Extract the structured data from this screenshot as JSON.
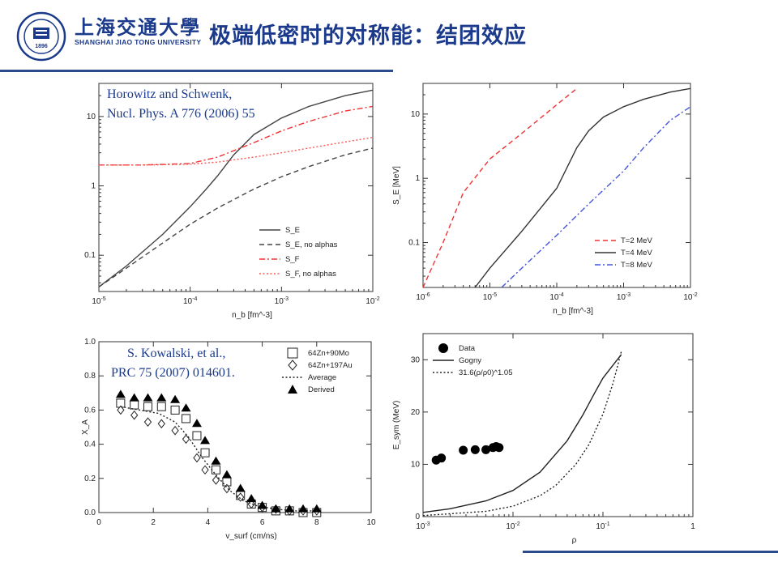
{
  "header": {
    "title": "极端低密时的对称能：结团效应",
    "logo_cn": "上海交通大學",
    "logo_en": "SHANGHAI JIAO TONG UNIVERSITY",
    "logo_year": "1896"
  },
  "citations": {
    "top_left_line1": "Horowitz and Schwenk,",
    "top_left_line2": "Nucl. Phys. A 776 (2006) 55",
    "bottom_left_line1": "S. Kowalski, et al.,",
    "bottom_left_line2": "PRC 75 (2007) 014601."
  },
  "chart_data": [
    {
      "type": "line",
      "panel": "top-left",
      "xlabel": "n_b [fm^-3]",
      "ylabel": "S_E, S_F [MeV]",
      "xscale": "log",
      "yscale": "log",
      "xlim": [
        1e-05,
        0.01
      ],
      "ylim": [
        0.03,
        30
      ],
      "xticks": [
        "10^-5",
        "10^-4",
        "10^-3",
        "10^-2"
      ],
      "yticks": [
        "0.1",
        "1",
        "10"
      ],
      "legend_position": "bottom-right",
      "series": [
        {
          "name": "S_E",
          "style": "solid",
          "color": "#444444",
          "x": [
            1e-05,
            2e-05,
            5e-05,
            0.0001,
            0.00015,
            0.0002,
            0.0003,
            0.0005,
            0.001,
            0.002,
            0.005,
            0.01
          ],
          "y": [
            0.035,
            0.07,
            0.2,
            0.5,
            0.9,
            1.4,
            2.8,
            5.5,
            9.5,
            14,
            20,
            24
          ]
        },
        {
          "name": "S_E, no alphas",
          "style": "dashed",
          "color": "#444444",
          "x": [
            1e-05,
            2e-05,
            5e-05,
            0.0001,
            0.0002,
            0.0005,
            0.001,
            0.002,
            0.005,
            0.01
          ],
          "y": [
            0.035,
            0.065,
            0.15,
            0.28,
            0.48,
            0.9,
            1.35,
            1.9,
            2.8,
            3.5
          ]
        },
        {
          "name": "S_F",
          "style": "dashdot",
          "color": "#ee3333",
          "x": [
            1e-05,
            3e-05,
            0.0001,
            0.0002,
            0.0005,
            0.001,
            0.002,
            0.005,
            0.01
          ],
          "y": [
            2.0,
            2.0,
            2.1,
            2.6,
            4.2,
            6.2,
            8.5,
            12,
            14
          ]
        },
        {
          "name": "S_F, no alphas",
          "style": "dotted",
          "color": "#ff5555",
          "x": [
            1e-05,
            3e-05,
            0.0001,
            0.0002,
            0.0005,
            0.001,
            0.002,
            0.005,
            0.01
          ],
          "y": [
            2.0,
            2.0,
            2.05,
            2.2,
            2.6,
            3.0,
            3.5,
            4.3,
            5.0
          ]
        }
      ]
    },
    {
      "type": "line",
      "panel": "top-right",
      "xlabel": "n_b [fm^-3]",
      "ylabel": "S_E [MeV]",
      "xscale": "log",
      "yscale": "log",
      "xlim": [
        1e-06,
        0.01
      ],
      "ylim": [
        0.02,
        30
      ],
      "xticks": [
        "10^-6",
        "10^-5",
        "10^-4",
        "10^-3",
        "10^-2"
      ],
      "yticks": [
        "0.1",
        "1",
        "10"
      ],
      "legend_position": "bottom-right",
      "series": [
        {
          "name": "T=2 MeV",
          "style": "dashed",
          "color": "#ee3333",
          "x": [
            1e-06,
            2e-06,
            4e-06,
            1e-05,
            3e-05,
            0.0001,
            0.0002
          ],
          "y": [
            0.02,
            0.1,
            0.6,
            2.0,
            5.0,
            14,
            25
          ]
        },
        {
          "name": "T=4 MeV",
          "style": "solid",
          "color": "#333333",
          "x": [
            6e-06,
            1e-05,
            3e-05,
            0.0001,
            0.0002,
            0.0003,
            0.0005,
            0.001,
            0.002,
            0.005,
            0.01
          ],
          "y": [
            0.02,
            0.04,
            0.15,
            0.7,
            3.0,
            5.5,
            9,
            13,
            17,
            22,
            25
          ]
        },
        {
          "name": "T=8 MeV",
          "style": "dashdot",
          "color": "#4455dd",
          "x": [
            1.5e-05,
            3e-05,
            0.0001,
            0.0003,
            0.001,
            0.002,
            0.005,
            0.01
          ],
          "y": [
            0.02,
            0.04,
            0.13,
            0.4,
            1.3,
            3.0,
            8.0,
            13
          ]
        }
      ]
    },
    {
      "type": "scatter",
      "panel": "bottom-left",
      "xlabel": "v_surf (cm/ns)",
      "ylabel": "X_A",
      "xlim": [
        0,
        10
      ],
      "ylim": [
        0,
        1.0
      ],
      "xticks": [
        "0",
        "2",
        "4",
        "6",
        "8",
        "10"
      ],
      "yticks": [
        "0.0",
        "0.2",
        "0.4",
        "0.6",
        "0.8",
        "1.0"
      ],
      "legend_position": "top-right",
      "series": [
        {
          "name": "64Zn+90Mo",
          "marker": "square-open",
          "x": [
            0.8,
            1.3,
            1.8,
            2.3,
            2.8,
            3.2,
            3.6,
            3.9,
            4.3,
            4.7,
            5.2,
            5.6,
            6.0,
            6.5,
            7.0,
            7.5,
            8.0
          ],
          "y": [
            0.64,
            0.63,
            0.62,
            0.62,
            0.6,
            0.55,
            0.45,
            0.35,
            0.25,
            0.18,
            0.1,
            0.05,
            0.03,
            0.01,
            0.01,
            0.0,
            0.0
          ]
        },
        {
          "name": "64Zn+197Au",
          "marker": "diamond-open",
          "x": [
            0.8,
            1.3,
            1.8,
            2.3,
            2.8,
            3.2,
            3.6,
            3.9,
            4.3,
            4.7,
            5.2,
            5.6,
            6.0,
            6.5,
            7.0,
            7.5,
            8.0
          ],
          "y": [
            0.6,
            0.57,
            0.53,
            0.52,
            0.48,
            0.43,
            0.32,
            0.25,
            0.19,
            0.14,
            0.09,
            0.05,
            0.03,
            0.02,
            0.01,
            0.01,
            0.01
          ]
        },
        {
          "name": "Average",
          "style": "dotted",
          "x": [
            0.8,
            1.5,
            2.2,
            2.8,
            3.3,
            3.8,
            4.3,
            4.8,
            5.3,
            5.8,
            6.5,
            7.2,
            8.0
          ],
          "y": [
            0.62,
            0.6,
            0.58,
            0.53,
            0.44,
            0.32,
            0.22,
            0.13,
            0.07,
            0.04,
            0.02,
            0.01,
            0.01
          ]
        },
        {
          "name": "Derived",
          "marker": "triangle-filled",
          "x": [
            0.8,
            1.3,
            1.8,
            2.3,
            2.8,
            3.2,
            3.6,
            3.9,
            4.3,
            4.7,
            5.2,
            5.6,
            6.0,
            6.5,
            7.0,
            7.5,
            8.0
          ],
          "y": [
            0.69,
            0.67,
            0.67,
            0.67,
            0.66,
            0.61,
            0.52,
            0.42,
            0.3,
            0.22,
            0.14,
            0.08,
            0.04,
            0.02,
            0.02,
            0.02,
            0.02
          ]
        }
      ]
    },
    {
      "type": "line",
      "panel": "bottom-right",
      "xlabel": "ρ",
      "ylabel": "E_sym (MeV)",
      "xscale": "log",
      "xlim": [
        0.001,
        1
      ],
      "ylim": [
        0,
        35
      ],
      "xticks": [
        "10^-3",
        "10^-2",
        "10^-1",
        "1"
      ],
      "yticks": [
        "0",
        "10",
        "20",
        "30"
      ],
      "legend_position": "top-left",
      "series": [
        {
          "name": "Data",
          "marker": "circle-filled",
          "x": [
            0.0014,
            0.0016,
            0.0028,
            0.0038,
            0.005,
            0.006,
            0.0065,
            0.007
          ],
          "y": [
            10.8,
            11.2,
            12.7,
            12.8,
            12.8,
            13.2,
            13.4,
            13.2
          ]
        },
        {
          "name": "Gogny",
          "style": "solid",
          "x": [
            0.001,
            0.002,
            0.005,
            0.01,
            0.02,
            0.04,
            0.06,
            0.08,
            0.1,
            0.13,
            0.16
          ],
          "y": [
            0.8,
            1.5,
            3.0,
            5.0,
            8.5,
            14.5,
            19.5,
            23.5,
            26.5,
            29.0,
            31.0
          ]
        },
        {
          "name": "31.6(ρ/ρ0)^1.05",
          "style": "dotted",
          "x": [
            0.001,
            0.005,
            0.01,
            0.02,
            0.03,
            0.05,
            0.07,
            0.1,
            0.13,
            0.16
          ],
          "y": [
            0.2,
            1.0,
            2.0,
            4.0,
            6.0,
            10.0,
            13.8,
            19.6,
            25.6,
            31.6
          ]
        }
      ]
    }
  ]
}
